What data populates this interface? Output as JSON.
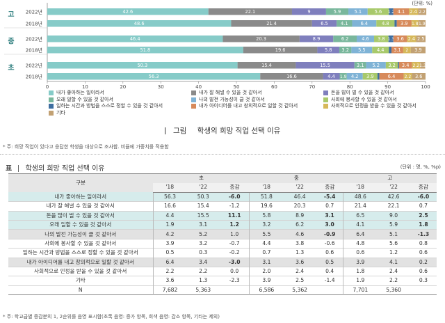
{
  "chart_data": {
    "type": "bar",
    "orientation": "horizontal",
    "stacked": true,
    "unit_label": "(단위: %)",
    "xlim": [
      0,
      100
    ],
    "x_ticks": [
      0,
      10,
      20,
      30,
      40,
      50,
      60,
      70,
      80,
      90,
      100
    ],
    "groups": [
      "고",
      "중",
      "초"
    ],
    "rows": [
      {
        "group": "고",
        "year": "2022년",
        "values": [
          42.6,
          22.1,
          9,
          5.9,
          5.1,
          5.6,
          1.2,
          4.1,
          2.4,
          2.2
        ]
      },
      {
        "group": "고",
        "year": "2018년",
        "values": [
          48.6,
          21.4,
          6.5,
          4.1,
          6.4,
          4.8,
          0.6,
          3.9,
          1.8,
          1.9
        ]
      },
      {
        "group": "중",
        "year": "2022년",
        "values": [
          46.4,
          20.3,
          8.9,
          6.2,
          4.6,
          3.8,
          1.3,
          3.6,
          2.4,
          2.5
        ]
      },
      {
        "group": "중",
        "year": "2018년",
        "values": [
          51.8,
          19.6,
          5.8,
          3.2,
          5.5,
          4.4,
          0.7,
          3.1,
          2.0,
          3.9
        ]
      },
      {
        "group": "초",
        "year": "2022년",
        "values": [
          50.3,
          15.4,
          15.5,
          3.1,
          5.2,
          3.2,
          0.3,
          3.4,
          2.2,
          1.3
        ]
      },
      {
        "group": "초",
        "year": "2018년",
        "values": [
          56.3,
          16.6,
          4.4,
          1.9,
          4.2,
          3.9,
          0.5,
          6.4,
          2.2,
          3.6
        ]
      }
    ],
    "series": [
      {
        "name": "내가 좋아하는 일이라서",
        "color": "#86cbc8"
      },
      {
        "name": "내가 잘 해낼 수 있을 것 같아서",
        "color": "#8a8a8a"
      },
      {
        "name": "돈을 많이 벌 수 있을 것 같아서",
        "color": "#7f7fbd"
      },
      {
        "name": "오래 일할 수 있을 것 같아서",
        "color": "#79b79c"
      },
      {
        "name": "나의 발전 가능성이 클 것 같아서",
        "color": "#7fb3d6"
      },
      {
        "name": "사회에 봉사할 수 있을 것 같아서",
        "color": "#a8c96b"
      },
      {
        "name": "일하는 시간과 방법을 스스로 정할 수 있을 것 같아서",
        "color": "#3e6ea0"
      },
      {
        "name": "내가 아이디어를 내고 창의적으로 일할 것 같아서",
        "color": "#d78a5b"
      },
      {
        "name": "사회적으로 인정을 받을 수 있을 것 같아서",
        "color": "#d6b85a"
      },
      {
        "name": "기타",
        "color": "#c2a173"
      }
    ],
    "legend_position": "bottom",
    "grid": false
  },
  "caption": {
    "label": "그림",
    "title": "학생의 희망 직업 선택 이유"
  },
  "note_top": "* 주: 희망 직업이 있다고 응답한 학생을 대상으로 조사함. 비율에 가중치를 적용함",
  "table": {
    "label": "표",
    "title": "학생의 희망 직업 선택 이유",
    "unit": "(단위 : 명, %, %p)",
    "col_header": "구분",
    "groups": [
      "초",
      "중",
      "고"
    ],
    "sub": [
      "'18",
      "'22",
      "증감"
    ],
    "rows": [
      {
        "label": "내가 좋아하는 일이라서",
        "hl": "teal",
        "v": [
          "56.3",
          "50.3",
          "-6.0",
          "51.8",
          "46.4",
          "-5.4",
          "48.6",
          "42.6",
          "-6.0"
        ],
        "bold": [
          2,
          5,
          8
        ]
      },
      {
        "label": "내가 잘 해낼 수 있을 것 같아서",
        "hl": "",
        "v": [
          "16.6",
          "15.4",
          "-1.2",
          "19.6",
          "20.3",
          "0.7",
          "21.4",
          "22.1",
          "0.7"
        ],
        "bold": []
      },
      {
        "label": "돈을 많이 벌 수 있을 것 같아서",
        "hl": "teal",
        "v": [
          "4.4",
          "15.5",
          "11.1",
          "5.8",
          "8.9",
          "3.1",
          "6.5",
          "9.0",
          "2.5"
        ],
        "bold": [
          2,
          5,
          8
        ]
      },
      {
        "label": "오래 일할 수 있을 것 같아서",
        "hl": "teal",
        "v": [
          "1.9",
          "3.1",
          "1.2",
          "3.2",
          "6.2",
          "3.0",
          "4.1",
          "5.9",
          "1.8"
        ],
        "bold": [
          2,
          5,
          8
        ]
      },
      {
        "label": "나의 발전 가능성이 클 것 같아서",
        "hl": "gray",
        "v": [
          "4.2",
          "5.2",
          "1.0",
          "5.5",
          "4.6",
          "-0.9",
          "6.4",
          "5.1",
          "-1.3"
        ],
        "bold": [
          5,
          8
        ]
      },
      {
        "label": "사회에 봉사할 수 있을 것 같아서",
        "hl": "",
        "v": [
          "3.9",
          "3.2",
          "-0.7",
          "4.4",
          "3.8",
          "-0.6",
          "4.8",
          "5.6",
          "0.8"
        ],
        "bold": []
      },
      {
        "label": "일하는 시간과 방법을 스스로 정할 수 있을 것 같아서",
        "hl": "",
        "v": [
          "0.5",
          "0.3",
          "-0.2",
          "0.7",
          "1.3",
          "0.6",
          "0.6",
          "1.2",
          "0.6"
        ],
        "bold": []
      },
      {
        "label": "내가 아이디어를 내고 창의적으로 일할 것 같아서",
        "hl": "gray",
        "v": [
          "6.4",
          "3.4",
          "-3.0",
          "3.1",
          "3.6",
          "0.5",
          "3.9",
          "4.1",
          "0.2"
        ],
        "bold": [
          2
        ]
      },
      {
        "label": "사회적으로 인정을 받을 수 있을 것 같아서",
        "hl": "",
        "v": [
          "2.2",
          "2.2",
          "0.0",
          "2.0",
          "2.4",
          "0.4",
          "1.8",
          "2.4",
          "0.6"
        ],
        "bold": []
      },
      {
        "label": "기타",
        "hl": "",
        "v": [
          "3.6",
          "1.3",
          "-2.3",
          "3.9",
          "2.5",
          "-1.4",
          "1.9",
          "2.2",
          "0.3"
        ],
        "bold": []
      },
      {
        "label": "N",
        "hl": "",
        "v": [
          "7,682",
          "5,363",
          "",
          "6,586",
          "5,362",
          "",
          "7,701",
          "5,360",
          ""
        ],
        "bold": []
      }
    ]
  },
  "note_bottom": "* 주: 학교급별 증감분의 1, 2순위를 음영 표시함(초록 음영: 증가 항목, 회색 음영: 감소 항목, 기타는 제외)"
}
